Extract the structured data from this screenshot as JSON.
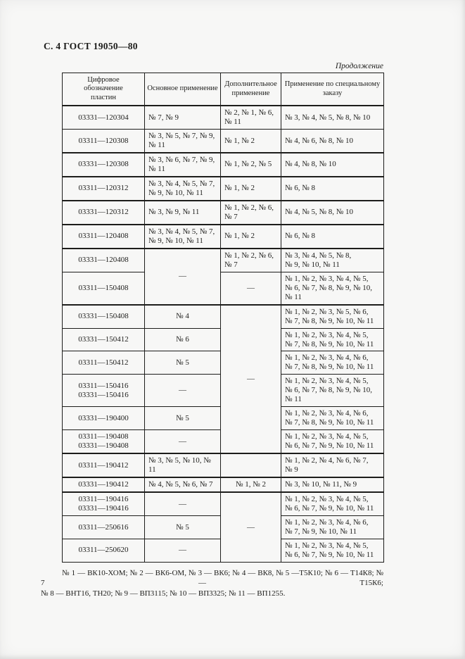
{
  "page": {
    "header": "С. 4 ГОСТ 19050—80",
    "continuation": "Продолжение"
  },
  "table": {
    "columns": [
      "Цифровое\nобозначение\nпластин",
      "Основное применение",
      "Дополнительное\nприменение",
      "Применение по специальному\nзаказу"
    ],
    "rows": [
      {
        "thick_top": false,
        "cells": [
          {
            "col": 0,
            "text": "03331—120304"
          },
          {
            "col": 1,
            "text": "№ 7, № 9"
          },
          {
            "col": 2,
            "text": "№ 2, № 1, № 6,\n№ 11"
          },
          {
            "col": 3,
            "text": "№ 3, № 4, № 5, № 8, № 10"
          }
        ]
      },
      {
        "thick_top": false,
        "cells": [
          {
            "col": 0,
            "text": "03311—120308"
          },
          {
            "col": 1,
            "text": "№ 3, № 5, № 7, № 9,\n№ 11"
          },
          {
            "col": 2,
            "text": "№ 1, № 2"
          },
          {
            "col": 3,
            "text": "№ 4, № 6, № 8, № 10"
          }
        ]
      },
      {
        "thick_top": true,
        "cells": [
          {
            "col": 0,
            "text": "03331—120308"
          },
          {
            "col": 1,
            "text": "№ 3, № 6, № 7, № 9,\n№ 11"
          },
          {
            "col": 2,
            "text": "№ 1, № 2, № 5"
          },
          {
            "col": 3,
            "text": "№ 4, № 8, № 10"
          }
        ]
      },
      {
        "thick_top": true,
        "cells": [
          {
            "col": 0,
            "text": "03311—120312"
          },
          {
            "col": 1,
            "text": "№ 3, № 4, № 5, № 7,\n№ 9, № 10, № 11"
          },
          {
            "col": 2,
            "text": "№ 1, № 2"
          },
          {
            "col": 3,
            "text": "№ 6, № 8"
          }
        ]
      },
      {
        "thick_top": true,
        "cells": [
          {
            "col": 0,
            "text": "03331—120312"
          },
          {
            "col": 1,
            "text": "№ 3, № 9, № 11"
          },
          {
            "col": 2,
            "text": "№ 1, № 2, № 6,\n№ 7"
          },
          {
            "col": 3,
            "text": "№ 4, № 5, № 8, № 10"
          }
        ]
      },
      {
        "thick_top": true,
        "cells": [
          {
            "col": 0,
            "text": "03311—120408"
          },
          {
            "col": 1,
            "text": "№ 3, № 4, № 5, № 7,\n№ 9, № 10, № 11"
          },
          {
            "col": 2,
            "text": "№ 1, № 2"
          },
          {
            "col": 3,
            "text": "№ 6, № 8"
          }
        ]
      },
      {
        "thick_top": true,
        "cells": [
          {
            "col": 0,
            "text": "03331—120408"
          },
          {
            "col": 1,
            "text": "—",
            "align": "center",
            "rowspan": 2
          },
          {
            "col": 2,
            "text": "№ 1, № 2, № 6,\n№ 7"
          },
          {
            "col": 3,
            "text": "№ 3, № 4, № 5, № 8,\n№ 9, № 10, № 11"
          }
        ]
      },
      {
        "thick_top": false,
        "cells": [
          {
            "col": 0,
            "text": "03311—150408"
          },
          {
            "col": 2,
            "text": "—",
            "align": "center"
          },
          {
            "col": 3,
            "text": "№ 1, № 2, № 3, № 4, № 5,\n№ 6, № 7, № 8, № 9, № 10,\n№ 11"
          }
        ]
      },
      {
        "thick_top": true,
        "cells": [
          {
            "col": 0,
            "text": "03331—150408"
          },
          {
            "col": 1,
            "text": "№ 4",
            "align": "center"
          },
          {
            "col": 2,
            "text": "—",
            "align": "center",
            "rowspan": 6
          },
          {
            "col": 3,
            "text": "№ 1, № 2, № 3, № 5, № 6,\n№ 7, № 8, № 9, № 10, № 11"
          }
        ]
      },
      {
        "thick_top": false,
        "cells": [
          {
            "col": 0,
            "text": "03331—150412"
          },
          {
            "col": 1,
            "text": "№ 6",
            "align": "center"
          },
          {
            "col": 3,
            "text": "№ 1, № 2, № 3, № 4, № 5,\n№ 7, № 8, № 9, № 10, № 11"
          }
        ]
      },
      {
        "thick_top": false,
        "cells": [
          {
            "col": 0,
            "text": "03311—150412"
          },
          {
            "col": 1,
            "text": "№ 5",
            "align": "center"
          },
          {
            "col": 3,
            "text": "№ 1, № 2, № 3, № 4, № 6,\n№ 7, № 8, № 9, № 10, № 11"
          }
        ]
      },
      {
        "thick_top": false,
        "cells": [
          {
            "col": 0,
            "text": "03311—150416\n03331—150416"
          },
          {
            "col": 1,
            "text": "—",
            "align": "center"
          },
          {
            "col": 3,
            "text": "№ 1, № 2, № 3, № 4, № 5,\n№ 6, № 7, № 8, № 9, № 10,\n№ 11"
          }
        ]
      },
      {
        "thick_top": false,
        "cells": [
          {
            "col": 0,
            "text": "03331—190400"
          },
          {
            "col": 1,
            "text": "№ 5",
            "align": "center"
          },
          {
            "col": 3,
            "text": "№ 1, № 2, № 3, № 4, № 6,\n№ 7, № 8, № 9, № 10, № 11"
          }
        ]
      },
      {
        "thick_top": false,
        "cells": [
          {
            "col": 0,
            "text": "03311—190408\n03331—190408"
          },
          {
            "col": 1,
            "text": "—",
            "align": "center"
          },
          {
            "col": 3,
            "text": "№ 1, № 2, № 3, № 4, № 5,\n№ 6, № 7, № 9, № 10, № 11"
          }
        ]
      },
      {
        "thick_top": true,
        "cells": [
          {
            "col": 0,
            "text": "03311—190412"
          },
          {
            "col": 1,
            "text": "№ 3, № 5, № 10, № 11"
          },
          {
            "col": 2,
            "text": ""
          },
          {
            "col": 3,
            "text": "№ 1, № 2, № 4, № 6, № 7,\n№ 9"
          }
        ]
      },
      {
        "thick_top": true,
        "cells": [
          {
            "col": 0,
            "text": "03331—190412"
          },
          {
            "col": 1,
            "text": "№ 4, № 5, № 6, № 7"
          },
          {
            "col": 2,
            "text": "№ 1, № 2",
            "align": "center"
          },
          {
            "col": 3,
            "text": "№ 3, № 10, № 11, № 9"
          }
        ]
      },
      {
        "thick_top": true,
        "cells": [
          {
            "col": 0,
            "text": "03311—190416\n03331—190416"
          },
          {
            "col": 1,
            "text": "—",
            "align": "center"
          },
          {
            "col": 2,
            "text": "—",
            "align": "center",
            "rowspan": 3
          },
          {
            "col": 3,
            "text": "№ 1, № 2, № 3, № 4, № 5,\n№ 6, № 7, № 9, № 10, № 11"
          }
        ]
      },
      {
        "thick_top": false,
        "cells": [
          {
            "col": 0,
            "text": "03311—250616"
          },
          {
            "col": 1,
            "text": "№ 5",
            "align": "center"
          },
          {
            "col": 3,
            "text": "№ 1, № 2, № 3, № 4, № 6,\n№ 7, № 9, № 10, № 11"
          }
        ]
      },
      {
        "thick_top": false,
        "cells": [
          {
            "col": 0,
            "text": "03311—250620"
          },
          {
            "col": 1,
            "text": "—",
            "align": "center"
          },
          {
            "col": 3,
            "text": "№ 1, № 2, № 3, № 4, № 5,\n№ 6, № 7, № 9, № 10, № 11"
          }
        ]
      }
    ]
  },
  "footnote": {
    "line1": "№ 1 — ВК10-ХОМ; № 2 — ВК6-ОМ, № 3 — ВК6; № 4 — ВК8, № 5 —Т5К10; № 6 — Т14К8; № 7 — Т15К6;",
    "line2": "№ 8 — ВНТ16, ТН20; № 9 — ВП3115; № 10 — ВП3325; № 11 — ВП1255."
  },
  "colors": {
    "ink": "#1d1d1b",
    "paper": "#f7f7f6"
  }
}
